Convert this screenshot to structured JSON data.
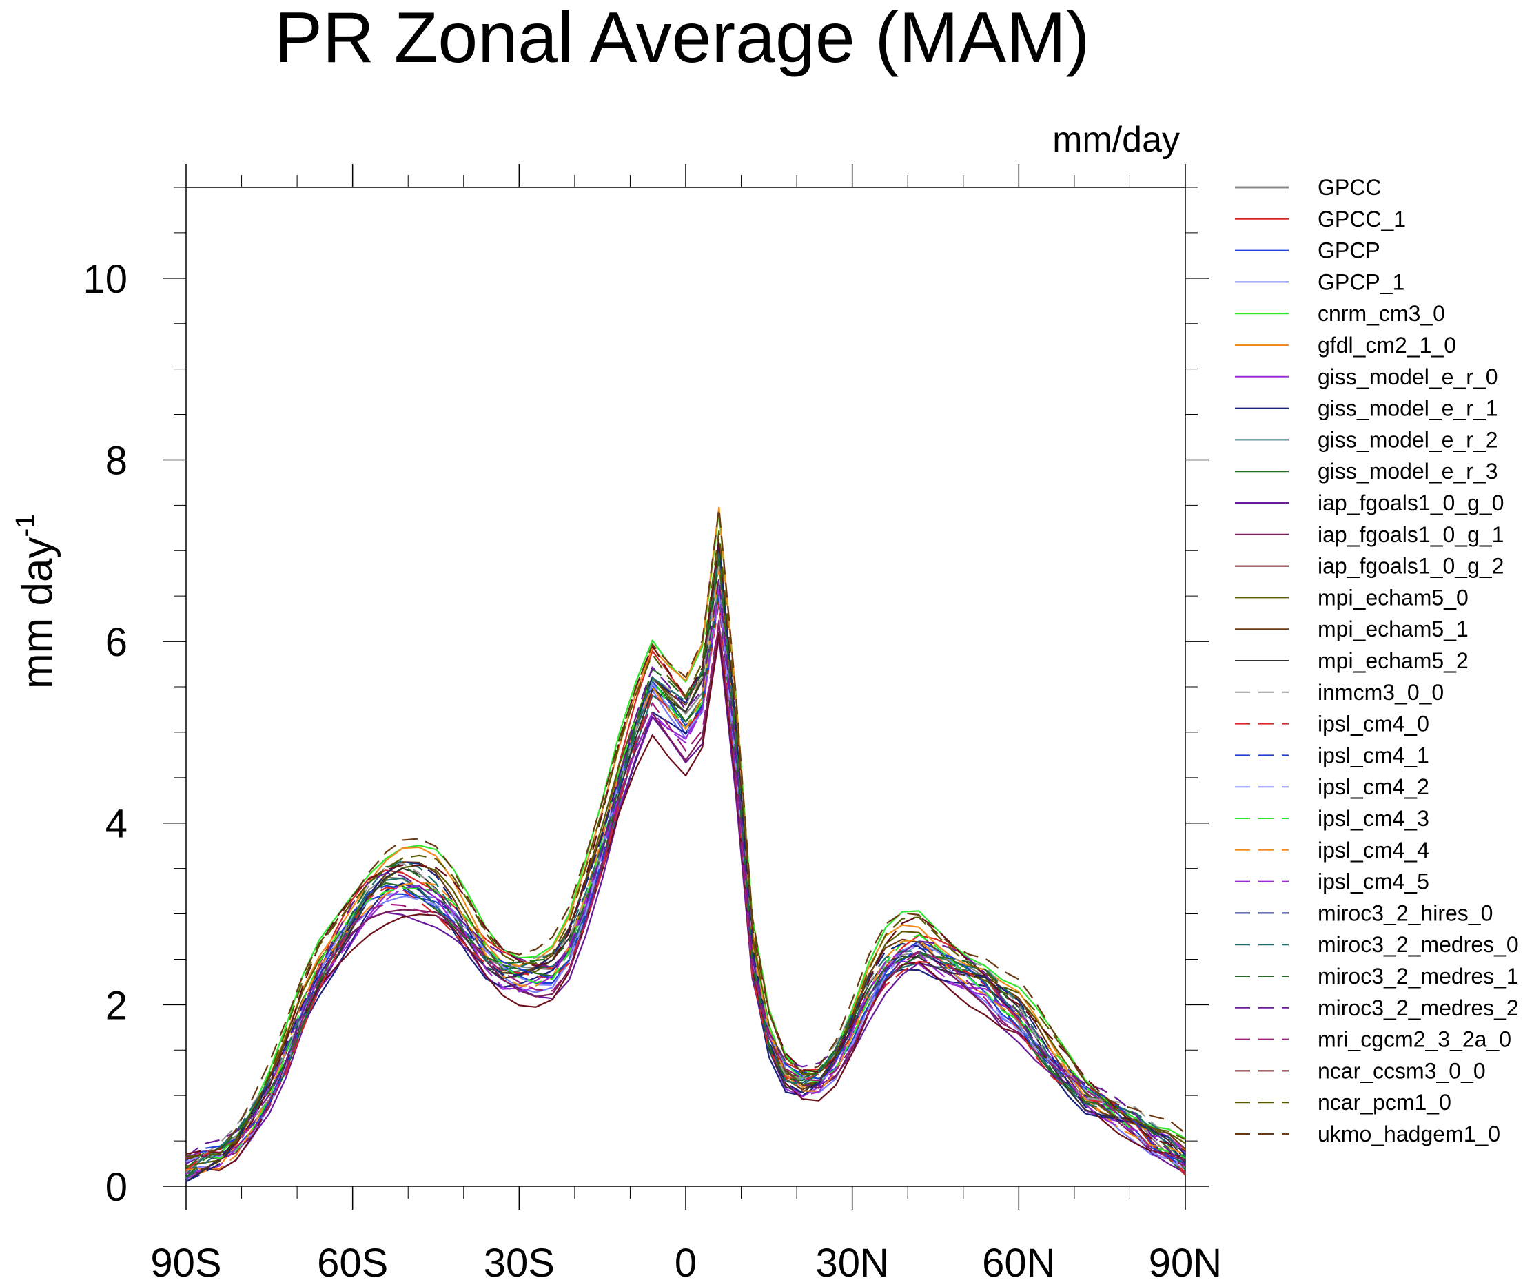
{
  "chart_data": {
    "type": "line",
    "title": "PR Zonal Average (MAM)",
    "units_label": "mm/day",
    "ylabel_main": "mm day",
    "ylabel_sup": "-1",
    "xlabel": "",
    "xlim": [
      -90,
      90
    ],
    "ylim": [
      0,
      11
    ],
    "x_ticks": [
      {
        "value": -90,
        "label": "90S"
      },
      {
        "value": -60,
        "label": "60S"
      },
      {
        "value": -30,
        "label": "30S"
      },
      {
        "value": 0,
        "label": "0"
      },
      {
        "value": 30,
        "label": "30N"
      },
      {
        "value": 60,
        "label": "60N"
      },
      {
        "value": 90,
        "label": "90N"
      }
    ],
    "y_ticks": [
      {
        "value": 0,
        "label": "0"
      },
      {
        "value": 2,
        "label": "2"
      },
      {
        "value": 4,
        "label": "4"
      },
      {
        "value": 6,
        "label": "6"
      },
      {
        "value": 8,
        "label": "8"
      },
      {
        "value": 10,
        "label": "10"
      }
    ],
    "grid": false,
    "legend_position": "right",
    "base_profile": {
      "lat": [
        -90,
        -87,
        -84,
        -81,
        -78,
        -75,
        -72,
        -69,
        -66,
        -63,
        -60,
        -57,
        -54,
        -51,
        -48,
        -45,
        -42,
        -39,
        -36,
        -33,
        -30,
        -27,
        -24,
        -21,
        -18,
        -15,
        -12,
        -9,
        -6,
        -3,
        0,
        3,
        6,
        9,
        12,
        15,
        18,
        21,
        24,
        27,
        30,
        33,
        36,
        39,
        42,
        45,
        48,
        51,
        54,
        57,
        60,
        63,
        66,
        69,
        72,
        75,
        78,
        81,
        84,
        87,
        90
      ],
      "value": [
        0.15,
        0.25,
        0.3,
        0.45,
        0.7,
        1.0,
        1.4,
        1.9,
        2.3,
        2.6,
        2.9,
        3.15,
        3.3,
        3.35,
        3.3,
        3.2,
        3.0,
        2.75,
        2.5,
        2.35,
        2.3,
        2.3,
        2.35,
        2.6,
        3.1,
        3.7,
        4.4,
        5.0,
        5.5,
        5.3,
        5.1,
        5.4,
        6.7,
        4.8,
        2.5,
        1.6,
        1.2,
        1.1,
        1.15,
        1.35,
        1.7,
        2.1,
        2.4,
        2.55,
        2.6,
        2.5,
        2.4,
        2.3,
        2.2,
        2.0,
        1.85,
        1.6,
        1.35,
        1.15,
        0.95,
        0.85,
        0.75,
        0.65,
        0.5,
        0.4,
        0.25
      ]
    },
    "series": [
      {
        "name": "GPCC",
        "color": "#888888",
        "dash": false,
        "scale": 1.0,
        "shift": 0.0,
        "phase": 0.0
      },
      {
        "name": "GPCC_1",
        "color": "#d62728",
        "dash": false,
        "scale": 1.05,
        "shift": 0.0,
        "phase": 0.9
      },
      {
        "name": "GPCP",
        "color": "#1f3fd6",
        "dash": false,
        "scale": 0.98,
        "shift": 0.05,
        "phase": 1.6
      },
      {
        "name": "GPCP_1",
        "color": "#7b7bff",
        "dash": false,
        "scale": 1.0,
        "shift": -0.05,
        "phase": 2.3
      },
      {
        "name": "cnrm_cm3_0",
        "color": "#2ee82e",
        "dash": false,
        "scale": 1.08,
        "shift": 0.15,
        "phase": 3.1
      },
      {
        "name": "gfdl_cm2_1_0",
        "color": "#f28b1d",
        "dash": false,
        "scale": 1.1,
        "shift": 0.0,
        "phase": 3.8
      },
      {
        "name": "giss_model_e_r_0",
        "color": "#9a2bd8",
        "dash": false,
        "scale": 0.95,
        "shift": 0.05,
        "phase": 4.4
      },
      {
        "name": "giss_model_e_r_1",
        "color": "#1a237e",
        "dash": false,
        "scale": 0.96,
        "shift": 0.0,
        "phase": 5.0
      },
      {
        "name": "giss_model_e_r_2",
        "color": "#1d6f6a",
        "dash": false,
        "scale": 0.97,
        "shift": 0.05,
        "phase": 5.7
      },
      {
        "name": "giss_model_e_r_3",
        "color": "#1f6b1f",
        "dash": false,
        "scale": 0.99,
        "shift": 0.0,
        "phase": 0.4
      },
      {
        "name": "iap_fgoals1_0_g_0",
        "color": "#6a1b9a",
        "dash": false,
        "scale": 0.92,
        "shift": 0.0,
        "phase": 1.2
      },
      {
        "name": "iap_fgoals1_0_g_1",
        "color": "#7b1f5a",
        "dash": false,
        "scale": 0.93,
        "shift": 0.05,
        "phase": 2.0
      },
      {
        "name": "iap_fgoals1_0_g_2",
        "color": "#6b0f1a",
        "dash": false,
        "scale": 0.91,
        "shift": 0.0,
        "phase": 2.7
      },
      {
        "name": "mpi_echam5_0",
        "color": "#5a5a00",
        "dash": false,
        "scale": 1.02,
        "shift": 0.1,
        "phase": 3.4
      },
      {
        "name": "mpi_echam5_1",
        "color": "#6b3a12",
        "dash": false,
        "scale": 1.03,
        "shift": 0.05,
        "phase": 4.1
      },
      {
        "name": "mpi_echam5_2",
        "color": "#333333",
        "dash": false,
        "scale": 1.01,
        "shift": 0.0,
        "phase": 4.8
      },
      {
        "name": "inmcm3_0_0",
        "color": "#9a9a9a",
        "dash": true,
        "scale": 1.0,
        "shift": 0.1,
        "phase": 5.5
      },
      {
        "name": "ipsl_cm4_0",
        "color": "#d62728",
        "dash": true,
        "scale": 0.97,
        "shift": 0.0,
        "phase": 0.2
      },
      {
        "name": "ipsl_cm4_1",
        "color": "#1f3fd6",
        "dash": true,
        "scale": 0.98,
        "shift": 0.05,
        "phase": 0.8
      },
      {
        "name": "ipsl_cm4_2",
        "color": "#8f8fff",
        "dash": true,
        "scale": 0.99,
        "shift": 0.0,
        "phase": 1.5
      },
      {
        "name": "ipsl_cm4_3",
        "color": "#2ee82e",
        "dash": true,
        "scale": 1.0,
        "shift": 0.05,
        "phase": 2.1
      },
      {
        "name": "ipsl_cm4_4",
        "color": "#f28b1d",
        "dash": true,
        "scale": 1.01,
        "shift": 0.0,
        "phase": 2.9
      },
      {
        "name": "ipsl_cm4_5",
        "color": "#9a2bd8",
        "dash": true,
        "scale": 0.96,
        "shift": 0.05,
        "phase": 3.6
      },
      {
        "name": "miroc3_2_hires_0",
        "color": "#1a237e",
        "dash": true,
        "scale": 1.04,
        "shift": 0.0,
        "phase": 4.3
      },
      {
        "name": "miroc3_2_medres_0",
        "color": "#1d6f6a",
        "dash": true,
        "scale": 1.02,
        "shift": 0.05,
        "phase": 5.0
      },
      {
        "name": "miroc3_2_medres_1",
        "color": "#1f6b1f",
        "dash": true,
        "scale": 1.03,
        "shift": 0.0,
        "phase": 5.8
      },
      {
        "name": "miroc3_2_medres_2",
        "color": "#6a1b9a",
        "dash": true,
        "scale": 1.0,
        "shift": 0.1,
        "phase": 0.6
      },
      {
        "name": "mri_cgcm2_3_2a_0",
        "color": "#9c1d7a",
        "dash": true,
        "scale": 0.94,
        "shift": 0.05,
        "phase": 1.4
      },
      {
        "name": "ncar_ccsm3_0_0",
        "color": "#6b0f1a",
        "dash": true,
        "scale": 1.06,
        "shift": 0.1,
        "phase": 2.2
      },
      {
        "name": "ncar_pcm1_0",
        "color": "#5a5a00",
        "dash": true,
        "scale": 1.05,
        "shift": 0.15,
        "phase": 3.0
      },
      {
        "name": "ukmo_hadgem1_0",
        "color": "#6b3a12",
        "dash": true,
        "scale": 1.07,
        "shift": 0.2,
        "phase": 3.7
      }
    ]
  }
}
